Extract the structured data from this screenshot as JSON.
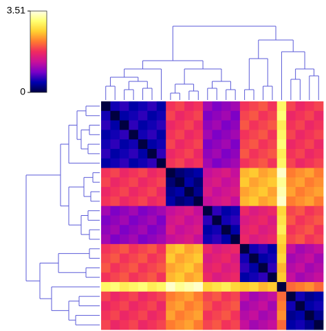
{
  "chart_data": {
    "type": "heatmap",
    "zlim": [
      0,
      3.51
    ],
    "colorbar_ticks": [
      3.51,
      0
    ],
    "colorscale": [
      "#000040",
      "#0000b0",
      "#7a00c8",
      "#c8109a",
      "#f02a60",
      "#ff7a30",
      "#ffd030",
      "#ffff70",
      "#ffffe8"
    ],
    "values": [
      [
        0,
        0.5,
        0.6,
        0.4,
        0.5,
        0.6,
        0.4,
        1.8,
        1.9,
        1.7,
        1.8,
        1.1,
        0.9,
        1.0,
        1.1,
        1.8,
        1.9,
        2.0,
        1.8,
        3.0,
        1.9,
        1.7,
        1.8,
        1.9
      ],
      [
        0.5,
        0,
        0.4,
        0.5,
        0.6,
        0.4,
        0.5,
        1.9,
        1.7,
        1.8,
        1.9,
        0.9,
        1.0,
        1.1,
        0.9,
        1.9,
        2.0,
        1.8,
        1.9,
        3.1,
        1.7,
        1.8,
        1.9,
        1.7
      ],
      [
        0.6,
        0.4,
        0,
        0.6,
        0.4,
        0.5,
        0.6,
        1.7,
        1.8,
        1.9,
        1.7,
        1.0,
        1.1,
        0.9,
        1.0,
        2.0,
        1.8,
        1.9,
        2.0,
        2.9,
        1.8,
        1.9,
        1.7,
        1.8
      ],
      [
        0.4,
        0.5,
        0.6,
        0,
        0.5,
        0.6,
        0.4,
        1.8,
        1.9,
        1.7,
        1.8,
        1.1,
        0.9,
        1.0,
        1.1,
        1.8,
        1.9,
        2.0,
        1.8,
        3.0,
        1.9,
        1.7,
        1.8,
        1.9
      ],
      [
        0.5,
        0.6,
        0.4,
        0.5,
        0,
        0.4,
        0.5,
        1.9,
        1.7,
        1.8,
        1.9,
        0.9,
        1.0,
        1.1,
        0.9,
        1.9,
        2.0,
        1.8,
        1.9,
        3.1,
        1.7,
        1.8,
        1.9,
        1.7
      ],
      [
        0.6,
        0.4,
        0.5,
        0.6,
        0.4,
        0,
        0.6,
        1.7,
        1.8,
        1.9,
        1.7,
        1.0,
        1.1,
        0.9,
        1.0,
        2.0,
        1.8,
        1.9,
        2.0,
        2.9,
        1.8,
        1.9,
        1.7,
        1.8
      ],
      [
        0.4,
        0.5,
        0.6,
        0.4,
        0.5,
        0.6,
        0,
        1.8,
        1.9,
        1.7,
        1.8,
        1.1,
        0.9,
        1.0,
        1.1,
        1.8,
        1.9,
        2.0,
        1.8,
        3.0,
        1.9,
        1.7,
        1.8,
        1.9
      ],
      [
        1.8,
        1.9,
        1.7,
        1.8,
        1.9,
        1.7,
        1.8,
        0,
        0.2,
        0.3,
        0.4,
        1.3,
        1.4,
        1.5,
        1.3,
        2.5,
        2.6,
        2.4,
        2.5,
        3.4,
        2.2,
        2.3,
        2.4,
        2.2
      ],
      [
        1.9,
        1.7,
        1.8,
        1.9,
        1.7,
        1.8,
        1.9,
        0.2,
        0,
        0.4,
        0.2,
        1.4,
        1.5,
        1.3,
        1.4,
        2.6,
        2.4,
        2.5,
        2.6,
        3.2,
        2.3,
        2.4,
        2.2,
        2.3
      ],
      [
        1.7,
        1.8,
        1.9,
        1.7,
        1.8,
        1.9,
        1.7,
        0.3,
        0.4,
        0,
        0.3,
        1.5,
        1.3,
        1.4,
        1.5,
        2.4,
        2.5,
        2.6,
        2.4,
        3.3,
        2.4,
        2.2,
        2.3,
        2.4
      ],
      [
        1.8,
        1.9,
        1.7,
        1.8,
        1.9,
        1.7,
        1.8,
        0.4,
        0.2,
        0.3,
        0,
        1.3,
        1.4,
        1.5,
        1.3,
        2.5,
        2.6,
        2.4,
        2.5,
        3.4,
        2.2,
        2.3,
        2.4,
        2.2
      ],
      [
        1.1,
        0.9,
        1.0,
        1.1,
        0.9,
        1.0,
        1.1,
        1.3,
        1.4,
        1.5,
        1.3,
        0,
        0.6,
        0.4,
        0.5,
        1.7,
        1.5,
        1.6,
        1.7,
        2.7,
        1.9,
        2.0,
        1.8,
        1.9
      ],
      [
        0.9,
        1.0,
        1.1,
        0.9,
        1.0,
        1.1,
        0.9,
        1.4,
        1.5,
        1.3,
        1.4,
        0.6,
        0,
        0.5,
        0.6,
        1.5,
        1.6,
        1.7,
        1.5,
        2.8,
        2.0,
        1.8,
        1.9,
        2.0
      ],
      [
        1.0,
        1.1,
        0.9,
        1.0,
        1.1,
        0.9,
        1.0,
        1.5,
        1.3,
        1.4,
        1.5,
        0.4,
        0.5,
        0,
        0.4,
        1.6,
        1.7,
        1.5,
        1.6,
        2.9,
        1.8,
        1.9,
        2.0,
        1.8
      ],
      [
        1.1,
        0.9,
        1.0,
        1.1,
        0.9,
        1.0,
        1.1,
        1.3,
        1.4,
        1.5,
        1.3,
        0.5,
        0.6,
        0.4,
        0,
        1.7,
        1.5,
        1.6,
        1.7,
        2.7,
        1.9,
        2.0,
        1.8,
        1.9
      ],
      [
        1.8,
        1.9,
        2.0,
        1.8,
        1.9,
        2.0,
        1.8,
        2.5,
        2.6,
        2.4,
        2.5,
        1.7,
        1.5,
        1.6,
        1.7,
        0,
        0.5,
        0.6,
        0.4,
        2.6,
        1.3,
        1.1,
        1.2,
        1.3
      ],
      [
        1.9,
        2.0,
        1.8,
        1.9,
        2.0,
        1.8,
        1.9,
        2.6,
        2.4,
        2.5,
        2.6,
        1.5,
        1.6,
        1.7,
        1.5,
        0.5,
        0,
        0.4,
        0.5,
        2.7,
        1.1,
        1.2,
        1.3,
        1.1
      ],
      [
        2.0,
        1.8,
        1.9,
        2.0,
        1.8,
        1.9,
        2.0,
        2.4,
        2.5,
        2.6,
        2.4,
        1.6,
        1.7,
        1.5,
        1.6,
        0.6,
        0.4,
        0,
        0.6,
        2.5,
        1.2,
        1.3,
        1.1,
        1.2
      ],
      [
        1.8,
        1.9,
        2.0,
        1.8,
        1.9,
        2.0,
        1.8,
        2.5,
        2.6,
        2.4,
        2.5,
        1.7,
        1.5,
        1.6,
        1.7,
        0.4,
        0.5,
        0.6,
        0,
        2.6,
        1.3,
        1.1,
        1.2,
        1.3
      ],
      [
        3.0,
        3.1,
        2.9,
        3.0,
        3.1,
        2.9,
        3.0,
        3.4,
        3.2,
        3.3,
        3.4,
        2.7,
        2.8,
        2.9,
        2.7,
        2.6,
        2.7,
        2.5,
        2.6,
        0,
        2.1,
        2.2,
        2.3,
        2.1
      ],
      [
        1.9,
        1.7,
        1.8,
        1.9,
        1.7,
        1.8,
        1.9,
        2.2,
        2.3,
        2.4,
        2.2,
        1.9,
        2.0,
        1.8,
        1.9,
        1.3,
        1.1,
        1.2,
        1.3,
        2.1,
        0,
        0.5,
        0.3,
        0.4
      ],
      [
        1.7,
        1.8,
        1.9,
        1.7,
        1.8,
        1.9,
        1.7,
        2.3,
        2.4,
        2.2,
        2.3,
        2.0,
        1.8,
        1.9,
        2.0,
        1.1,
        1.2,
        1.3,
        1.1,
        2.2,
        0.5,
        0,
        0.4,
        0.5
      ],
      [
        1.8,
        1.9,
        1.7,
        1.8,
        1.9,
        1.7,
        1.8,
        2.4,
        2.2,
        2.3,
        2.4,
        1.8,
        1.9,
        2.0,
        1.8,
        1.2,
        1.3,
        1.1,
        1.2,
        2.3,
        0.3,
        0.4,
        0,
        0.3
      ],
      [
        1.9,
        1.7,
        1.8,
        1.9,
        1.7,
        1.8,
        1.9,
        2.2,
        2.3,
        2.4,
        2.2,
        1.9,
        2.0,
        1.8,
        1.9,
        1.3,
        1.1,
        1.2,
        1.3,
        2.1,
        0.4,
        0.5,
        0.3,
        0
      ]
    ]
  }
}
